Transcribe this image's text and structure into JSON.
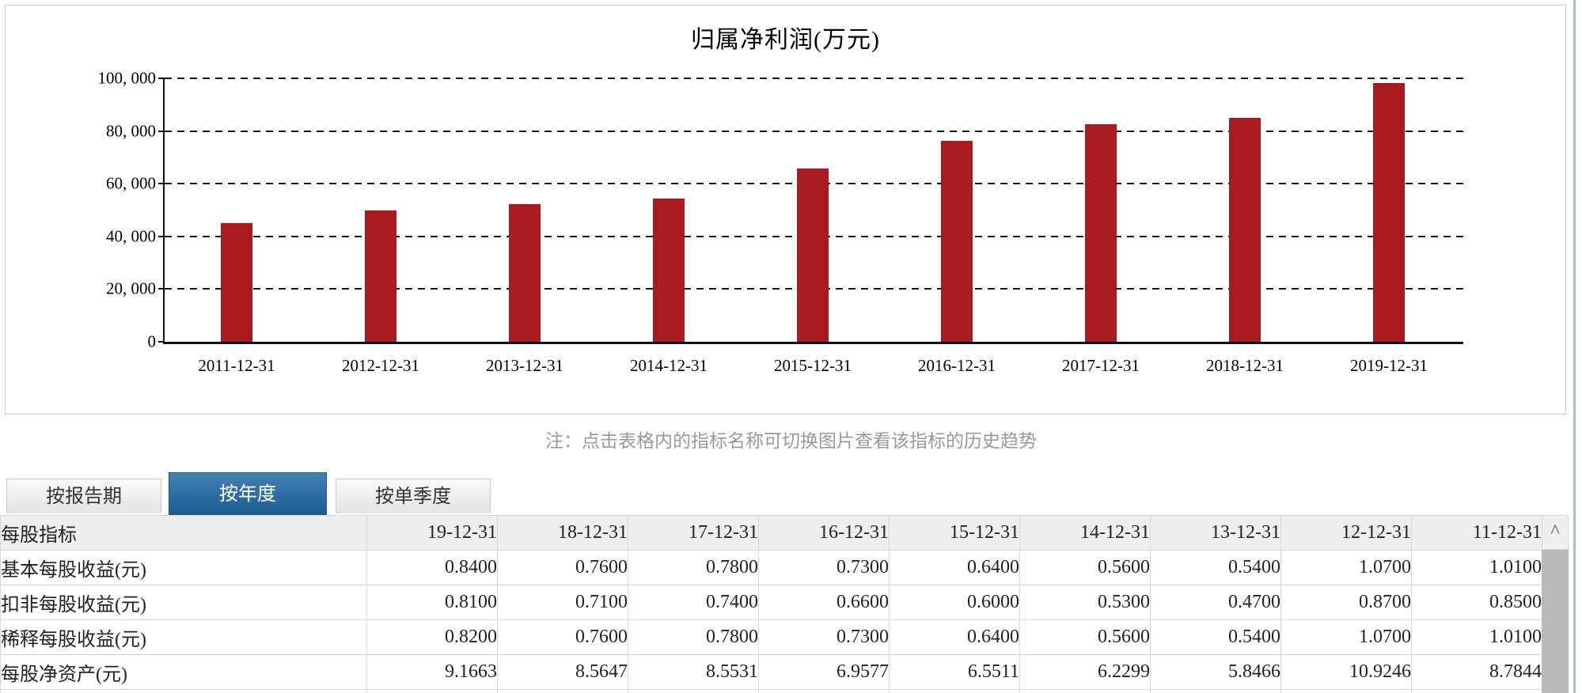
{
  "chart": {
    "title": "归属净利润(万元)",
    "y_tick_labels": [
      "100, 000",
      "80, 000",
      "60, 000",
      "40, 000",
      "20, 000",
      "0"
    ],
    "bar_color": "#a81c20",
    "axis_color": "#111111"
  },
  "chart_data": {
    "type": "bar",
    "title": "归属净利润(万元)",
    "categories": [
      "2011-12-31",
      "2012-12-31",
      "2013-12-31",
      "2014-12-31",
      "2015-12-31",
      "2016-12-31",
      "2017-12-31",
      "2018-12-31",
      "2019-12-31"
    ],
    "values": [
      44900,
      50000,
      52300,
      54400,
      65900,
      76300,
      82600,
      84900,
      98200
    ],
    "xlabel": "",
    "ylabel": "",
    "ylim": [
      0,
      100000
    ],
    "ytick_step": 20000,
    "grid": "dashed-horizontal",
    "legend": "none"
  },
  "note": "注：点击表格内的指标名称可切换图片查看该指标的历史趋势",
  "tabs": [
    {
      "label": "按报告期",
      "active": false
    },
    {
      "label": "按年度",
      "active": true
    },
    {
      "label": "按单季度",
      "active": false
    }
  ],
  "table": {
    "header": [
      "每股指标",
      "19-12-31",
      "18-12-31",
      "17-12-31",
      "16-12-31",
      "15-12-31",
      "14-12-31",
      "13-12-31",
      "12-12-31",
      "11-12-31"
    ],
    "rows": [
      {
        "label": "基本每股收益(元)",
        "values": [
          "0.8400",
          "0.7600",
          "0.7800",
          "0.7300",
          "0.6400",
          "0.5600",
          "0.5400",
          "1.0700",
          "1.0100"
        ]
      },
      {
        "label": "扣非每股收益(元)",
        "values": [
          "0.8100",
          "0.7100",
          "0.7400",
          "0.6600",
          "0.6000",
          "0.5300",
          "0.4700",
          "0.8700",
          "0.8500"
        ]
      },
      {
        "label": "稀释每股收益(元)",
        "values": [
          "0.8200",
          "0.7600",
          "0.7800",
          "0.7300",
          "0.6400",
          "0.5600",
          "0.5400",
          "1.0700",
          "1.0100"
        ]
      },
      {
        "label": "每股净资产(元)",
        "values": [
          "9.1663",
          "8.5647",
          "8.5531",
          "6.9577",
          "6.5511",
          "6.2299",
          "5.8466",
          "10.9246",
          "8.7844"
        ]
      },
      {
        "label": "",
        "values": [
          "",
          "",
          "",
          "",
          "",
          "",
          "",
          "",
          ""
        ]
      }
    ]
  },
  "scrollbar": {
    "up_arrow": "^"
  },
  "colors": {
    "tab_active_top": "#4181b3",
    "tab_active_bottom": "#1d5b91",
    "header_bg": "#eeeeee",
    "note_text": "#999999",
    "widget_border": "#a9c0c9"
  }
}
